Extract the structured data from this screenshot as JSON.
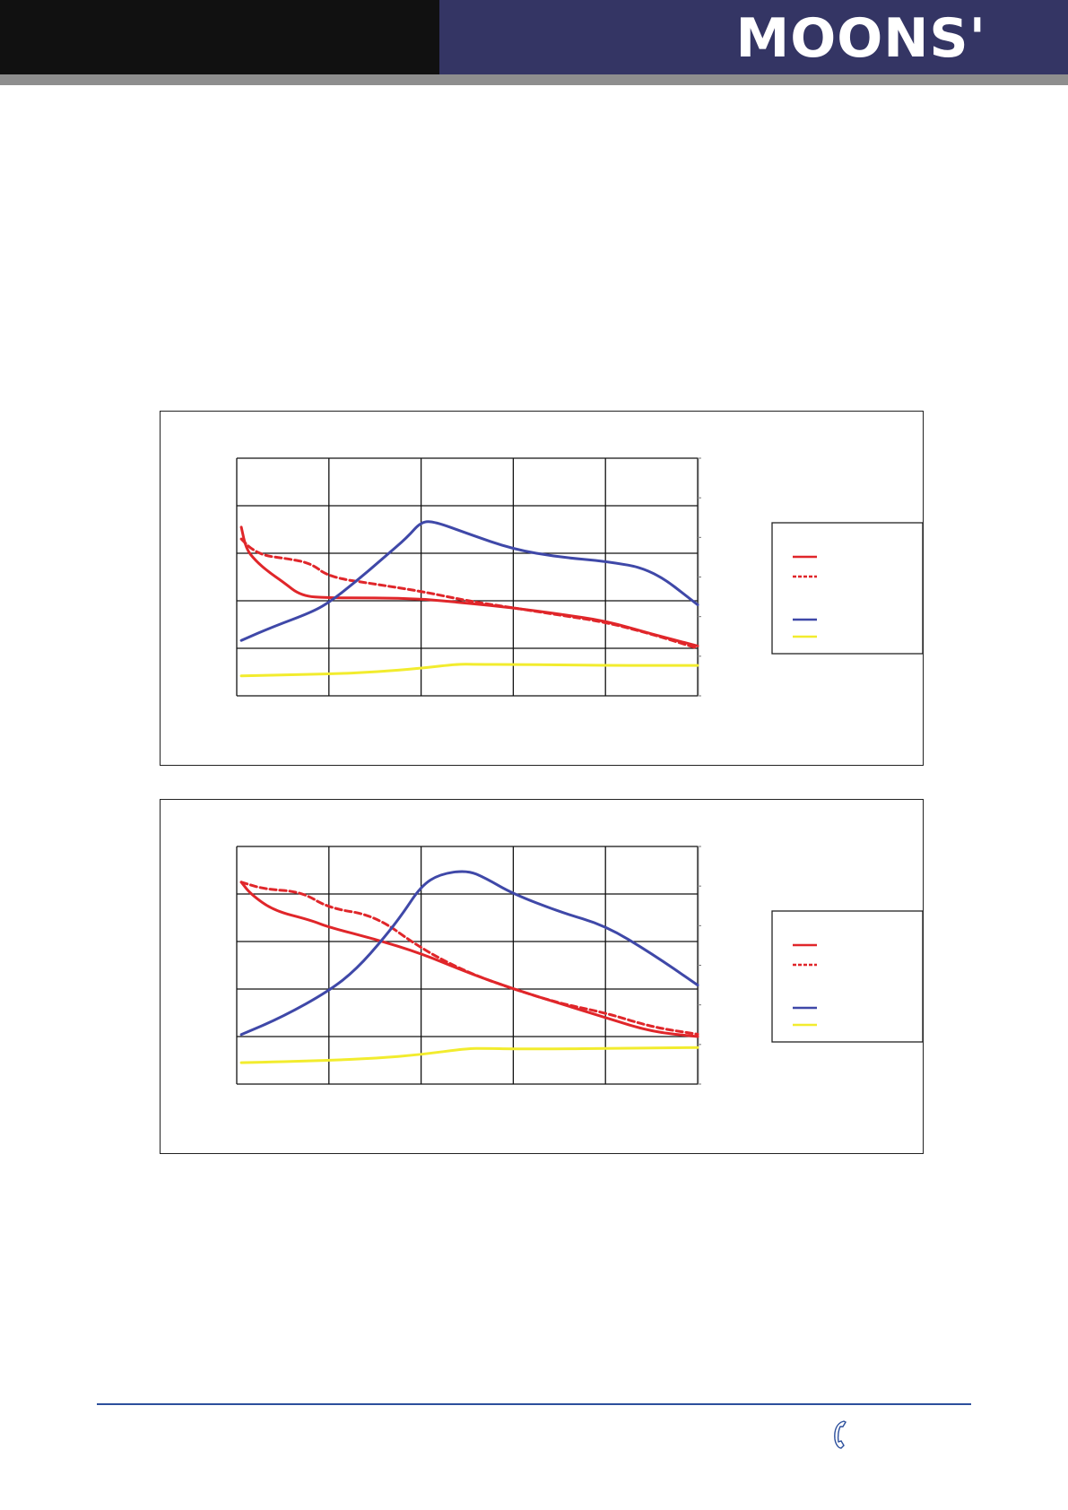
{
  "header": {
    "brand": "MOONS'"
  },
  "colors": {
    "header_dark": "#111111",
    "header_navy": "#343564",
    "header_bar": "#8e8e8e",
    "red": "#e0262a",
    "blue": "#3f48a8",
    "yellow": "#f2ec2e",
    "footer_line": "#2c4f9c"
  },
  "chart_data": [
    {
      "type": "line",
      "title": "",
      "xlabel": "",
      "ylabel": "",
      "xlim": [
        0,
        5
      ],
      "ylim": [
        0,
        5
      ],
      "y2lim": [
        0,
        6
      ],
      "grid": true,
      "legend_position": "right",
      "series": [
        {
          "color": "#e0262a",
          "style": "solid",
          "axis": "left",
          "x": [
            0.05,
            0.1,
            0.2,
            0.35,
            0.5,
            0.7,
            1.0,
            1.5,
            2.0,
            2.5,
            3.0,
            3.5,
            4.0,
            4.5,
            5.0
          ],
          "y": [
            3.55,
            3.1,
            2.85,
            2.6,
            2.4,
            2.1,
            2.06,
            2.06,
            2.04,
            1.95,
            1.85,
            1.72,
            1.58,
            1.3,
            1.05
          ]
        },
        {
          "color": "#e0262a",
          "style": "dashed",
          "axis": "left",
          "x": [
            0.05,
            0.15,
            0.3,
            0.5,
            0.8,
            1.0,
            1.5,
            2.0,
            2.5,
            3.0,
            3.5,
            4.0,
            4.5,
            5.0
          ],
          "y": [
            3.3,
            3.1,
            2.95,
            2.9,
            2.8,
            2.5,
            2.35,
            2.2,
            2.0,
            1.85,
            1.7,
            1.55,
            1.3,
            1.0
          ]
        },
        {
          "color": "#3f48a8",
          "style": "solid",
          "axis": "right",
          "x": [
            0.05,
            0.4,
            0.8,
            1.0,
            1.3,
            1.6,
            1.85,
            2.0,
            2.15,
            2.5,
            3.0,
            3.5,
            4.0,
            4.5,
            5.0
          ],
          "y": [
            1.4,
            1.75,
            2.1,
            2.35,
            2.9,
            3.5,
            4.0,
            4.4,
            4.4,
            4.1,
            3.7,
            3.5,
            3.4,
            3.2,
            2.3
          ]
        },
        {
          "color": "#f2ec2e",
          "style": "solid",
          "axis": "left",
          "x": [
            0.05,
            0.5,
            1.0,
            1.5,
            2.0,
            2.4,
            2.6,
            3.0,
            3.5,
            4.0,
            4.5,
            5.0
          ],
          "y": [
            0.42,
            0.44,
            0.46,
            0.5,
            0.58,
            0.67,
            0.66,
            0.66,
            0.65,
            0.64,
            0.64,
            0.64
          ]
        }
      ]
    },
    {
      "type": "line",
      "title": "",
      "xlabel": "",
      "ylabel": "",
      "xlim": [
        0,
        5
      ],
      "ylim": [
        0,
        5
      ],
      "y2lim": [
        0,
        6
      ],
      "grid": true,
      "legend_position": "right",
      "series": [
        {
          "color": "#e0262a",
          "style": "solid",
          "axis": "left",
          "x": [
            0.05,
            0.15,
            0.4,
            0.8,
            1.0,
            1.5,
            2.0,
            2.5,
            3.0,
            3.5,
            4.0,
            4.5,
            5.0
          ],
          "y": [
            4.25,
            4.0,
            3.65,
            3.45,
            3.3,
            3.05,
            2.75,
            2.35,
            2.0,
            1.7,
            1.4,
            1.1,
            1.0
          ]
        },
        {
          "color": "#e0262a",
          "style": "dashed",
          "axis": "left",
          "x": [
            0.05,
            0.3,
            0.7,
            1.0,
            1.5,
            2.0,
            2.5,
            3.0,
            3.5,
            4.0,
            4.5,
            5.0
          ],
          "y": [
            4.25,
            4.1,
            4.05,
            3.7,
            3.55,
            2.85,
            2.35,
            2.0,
            1.7,
            1.5,
            1.2,
            1.05
          ]
        },
        {
          "color": "#3f48a8",
          "style": "solid",
          "axis": "right",
          "x": [
            0.05,
            0.5,
            1.0,
            1.3,
            1.6,
            1.8,
            2.0,
            2.2,
            2.5,
            2.7,
            3.0,
            3.5,
            4.0,
            4.5,
            5.0
          ],
          "y": [
            1.25,
            1.7,
            2.35,
            2.9,
            3.7,
            4.3,
            5.0,
            5.3,
            5.4,
            5.2,
            4.8,
            4.35,
            4.0,
            3.3,
            2.5
          ]
        },
        {
          "color": "#f2ec2e",
          "style": "solid",
          "axis": "left",
          "x": [
            0.05,
            0.5,
            1.0,
            1.5,
            2.0,
            2.5,
            2.7,
            3.0,
            3.5,
            4.0,
            4.5,
            5.0
          ],
          "y": [
            0.45,
            0.47,
            0.5,
            0.54,
            0.62,
            0.75,
            0.75,
            0.74,
            0.74,
            0.75,
            0.76,
            0.77
          ]
        }
      ]
    }
  ]
}
